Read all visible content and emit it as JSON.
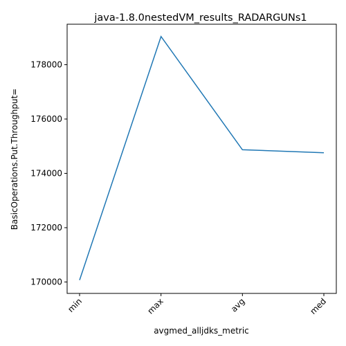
{
  "chart_data": {
    "type": "line",
    "title": "java-1.8.0nestedVM_results_RADARGUNs1",
    "xlabel": "avgmed_alljdks_metric",
    "ylabel": "BasicOperations.Put.Throughput=",
    "categories": [
      "min",
      "max",
      "avg",
      "med"
    ],
    "series": [
      {
        "values": [
          170070,
          179040,
          174870,
          174760
        ]
      }
    ],
    "ylim": [
      169580,
      179490
    ],
    "yticks": [
      170000,
      172000,
      174000,
      176000,
      178000
    ],
    "ytick_labels": [
      "170000",
      "172000",
      "174000",
      "176000",
      "178000"
    ],
    "grid": false,
    "line_color": "#1f77b4"
  }
}
